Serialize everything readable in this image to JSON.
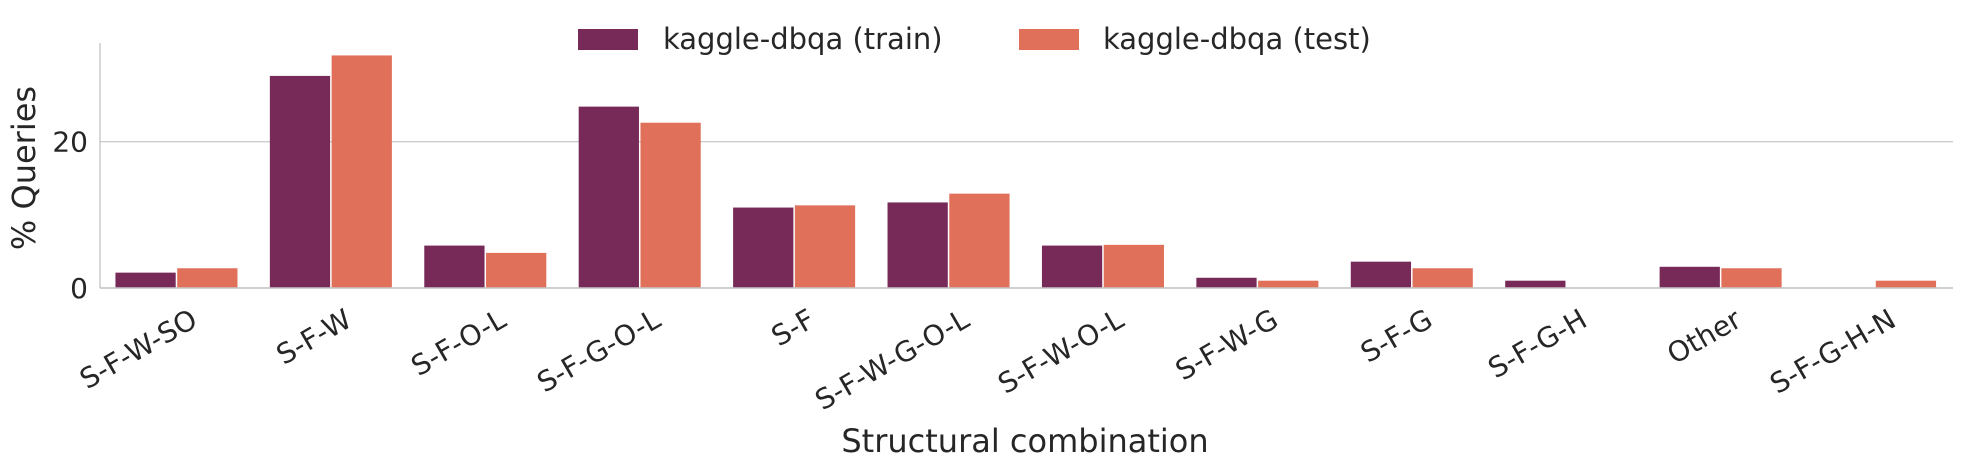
{
  "chart_data": {
    "type": "bar",
    "xlabel": "Structural combination",
    "ylabel": "% Queries",
    "ylim": [
      0,
      33.5
    ],
    "yticks": [
      0,
      20
    ],
    "grid": "horizontal",
    "legend_position": "top-center",
    "categories": [
      "S-F-W-SO",
      "S-F-W",
      "S-F-O-L",
      "S-F-G-O-L",
      "S-F",
      "S-F-W-G-O-L",
      "S-F-W-O-L",
      "S-F-W-G",
      "S-F-G",
      "S-F-G-H",
      "Other",
      "S-F-G-H-N"
    ],
    "series": [
      {
        "name": "kaggle-dbqa (train)",
        "color": "#772A57",
        "values": [
          2.1,
          29.0,
          5.8,
          24.8,
          11.0,
          11.7,
          5.8,
          1.4,
          3.6,
          1.0,
          2.9,
          0.0
        ]
      },
      {
        "name": "kaggle-dbqa (test)",
        "color": "#E0705A",
        "values": [
          2.7,
          31.8,
          4.8,
          22.6,
          11.3,
          12.9,
          5.9,
          1.0,
          2.7,
          0.0,
          2.7,
          1.0
        ]
      }
    ]
  }
}
